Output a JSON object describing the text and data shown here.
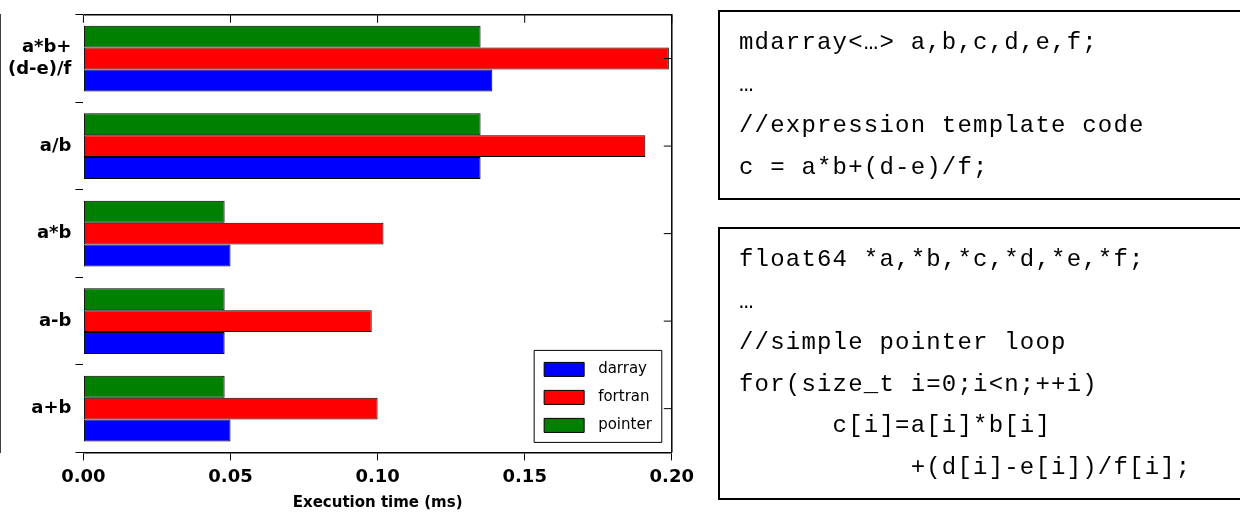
{
  "chart_data": [
    {
      "type": "bar",
      "orientation": "horizontal",
      "categories": [
        "a*b+\n(d-e)/f",
        "a/b",
        "a*b",
        "a-b",
        "a+b"
      ],
      "series": [
        {
          "name": "darray",
          "color": "#0000ff",
          "values": [
            0.139,
            0.135,
            0.05,
            0.048,
            0.05
          ]
        },
        {
          "name": "fortran",
          "color": "#ff0000",
          "values": [
            0.199,
            0.191,
            0.102,
            0.098,
            0.1
          ]
        },
        {
          "name": "pointer",
          "color": "#008000",
          "values": [
            0.135,
            0.135,
            0.048,
            0.048,
            0.048
          ]
        }
      ],
      "xlabel": "Execution time (ms)",
      "xlim": [
        0,
        0.2
      ],
      "xticks": [
        {
          "value": 0,
          "label": "0.00"
        },
        {
          "value": 0.05,
          "label": "0.05"
        },
        {
          "value": 0.1,
          "label": "0.10"
        },
        {
          "value": 0.15,
          "label": "0.15"
        },
        {
          "value": 0.2,
          "label": "0.20"
        }
      ],
      "legend": "bottom right"
    },
    {
      "type": "other",
      "annotations": [
        "mdarray<…> a,b,c,d,e,f;",
        "…",
        "//expression template code",
        "c = a*b+(d-e)/f;"
      ]
    },
    {
      "type": "other",
      "annotations": [
        "float64 *a,*b,*c,*d,*e,*f;",
        "…",
        "//simple pointer loop",
        "for(size_t i=0;i<n;++i)",
        "      c[i]=a[i]*b[i]",
        "           +(d[i]-e[i])/f[i];"
      ]
    }
  ]
}
